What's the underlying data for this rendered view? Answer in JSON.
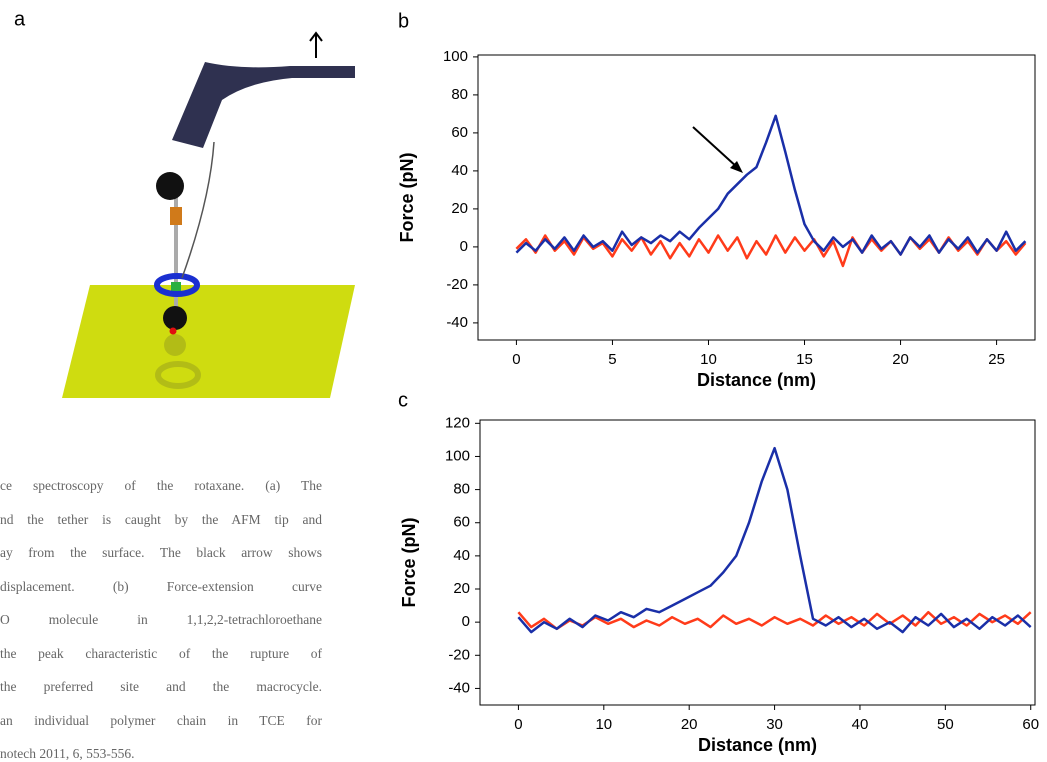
{
  "figure": {
    "panel_a_label": "a",
    "caption": [
      "ce spectroscopy of the rotaxane. (a) The",
      "nd the tether is caught by the AFM tip and",
      "ay from the surface. The black arrow shows",
      "displacement. (b) Force-extension curve",
      "O molecule in 1,1,2,2-tetrachloroethane",
      "the peak characteristic of the rupture of",
      "the preferred site and the macrocycle.",
      "an individual polymer chain in TCE for",
      "notech 2011, 6, 553-556."
    ]
  },
  "chart_data": [
    {
      "type": "line",
      "label": "b",
      "xlabel": "Distance (nm)",
      "ylabel": "Force (pN)",
      "xlim": [
        -2,
        27
      ],
      "ylim": [
        -49,
        101
      ],
      "xticks": [
        0,
        5,
        10,
        15,
        20,
        25
      ],
      "yticks": [
        -40,
        -20,
        0,
        20,
        40,
        60,
        80,
        100
      ],
      "x": [
        0,
        0.5,
        1,
        1.5,
        2,
        2.5,
        3,
        3.5,
        4,
        4.5,
        5,
        5.5,
        6,
        6.5,
        7,
        7.5,
        8,
        8.5,
        9,
        9.5,
        10,
        10.5,
        11,
        11.5,
        12,
        12.5,
        13,
        13.5,
        14,
        14.5,
        15,
        15.5,
        16,
        16.5,
        17,
        17.5,
        18,
        18.5,
        19,
        19.5,
        20,
        20.5,
        21,
        21.5,
        22,
        22.5,
        23,
        23.5,
        24,
        24.5,
        25,
        25.5,
        26,
        26.5
      ],
      "series": [
        {
          "color": "#ff3b1a",
          "values": [
            -1,
            4,
            -3,
            6,
            -2,
            3,
            -4,
            5,
            -1,
            2,
            -5,
            4,
            -2,
            5,
            -4,
            3,
            -6,
            2,
            -5,
            4,
            -3,
            6,
            -2,
            5,
            -6,
            3,
            -4,
            6,
            -3,
            5,
            -2,
            4,
            -5,
            3,
            -10,
            5,
            -3,
            4,
            -2,
            3,
            -4,
            5,
            -1,
            4,
            -3,
            5,
            -2,
            3,
            -4,
            4,
            -2,
            3,
            -4,
            2
          ]
        },
        {
          "color": "#1a2fa8",
          "values": [
            -3,
            2,
            -2,
            4,
            -1,
            5,
            -2,
            6,
            0,
            3,
            -2,
            8,
            1,
            5,
            2,
            6,
            3,
            8,
            4,
            10,
            15,
            20,
            28,
            33,
            38,
            42,
            55,
            69,
            50,
            30,
            12,
            3,
            -2,
            5,
            0,
            4,
            -3,
            6,
            -1,
            3,
            -4,
            5,
            0,
            6,
            -3,
            4,
            -1,
            5,
            -3,
            4,
            -2,
            8,
            -2,
            3
          ]
        }
      ]
    },
    {
      "type": "line",
      "label": "c",
      "xlabel": "Distance (nm)",
      "ylabel": "Force (pN)",
      "xlim": [
        -4.5,
        60.5
      ],
      "ylim": [
        -50,
        122
      ],
      "xticks": [
        0,
        10,
        20,
        30,
        40,
        50,
        60
      ],
      "yticks": [
        -40,
        -20,
        0,
        20,
        40,
        60,
        80,
        100,
        120
      ],
      "x": [
        0,
        1.5,
        3,
        4.5,
        6,
        7.5,
        9,
        10.5,
        12,
        13.5,
        15,
        16.5,
        18,
        19.5,
        21,
        22.5,
        24,
        25.5,
        27,
        28.5,
        30,
        31.5,
        33,
        34.5,
        36,
        37.5,
        39,
        40.5,
        42,
        43.5,
        45,
        46.5,
        48,
        49.5,
        51,
        52.5,
        54,
        55.5,
        57,
        58.5,
        60
      ],
      "series": [
        {
          "color": "#ff3b1a",
          "values": [
            6,
            -3,
            2,
            -4,
            1,
            -2,
            3,
            -1,
            2,
            -3,
            1,
            -2,
            3,
            -1,
            2,
            -3,
            4,
            -1,
            2,
            -2,
            3,
            -1,
            2,
            -2,
            4,
            -1,
            3,
            -2,
            5,
            -1,
            4,
            -2,
            6,
            -1,
            3,
            -2,
            5,
            0,
            4,
            -1,
            6
          ]
        },
        {
          "color": "#1a2fa8",
          "values": [
            3,
            -6,
            0,
            -4,
            2,
            -3,
            4,
            1,
            6,
            3,
            8,
            6,
            10,
            14,
            18,
            22,
            30,
            40,
            60,
            85,
            105,
            80,
            40,
            2,
            -2,
            3,
            -3,
            2,
            -4,
            0,
            -6,
            3,
            -2,
            5,
            -3,
            2,
            -4,
            3,
            -2,
            4,
            -3
          ]
        }
      ]
    }
  ]
}
